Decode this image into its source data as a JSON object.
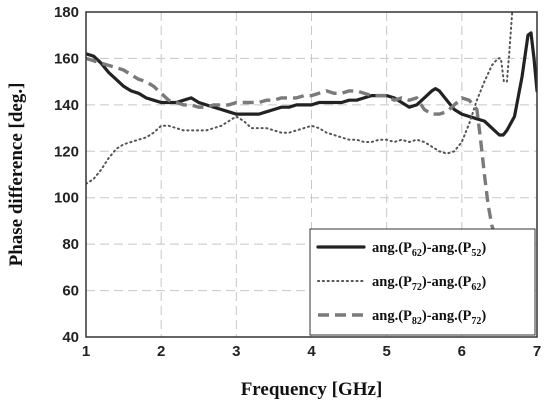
{
  "chart_data": {
    "type": "line",
    "xlabel": "Frequency [GHz]",
    "ylabel": "Phase difference [deg.]",
    "xlim": [
      1,
      7
    ],
    "ylim": [
      40,
      180
    ],
    "xticks": [
      1,
      2,
      3,
      4,
      5,
      6,
      7
    ],
    "yticks": [
      40,
      60,
      80,
      100,
      120,
      140,
      160,
      180
    ],
    "grid": true,
    "legend_position": "bottom-right",
    "series": [
      {
        "name": "ang.(P62)-ang.(P52)",
        "legend": {
          "a": "ang.(P",
          "sa": "62",
          "b": ")-ang.(P",
          "sb": "52",
          "c": ")"
        },
        "style": "solid",
        "color": "#222222",
        "points": [
          [
            1.0,
            162
          ],
          [
            1.1,
            161
          ],
          [
            1.2,
            158
          ],
          [
            1.3,
            154
          ],
          [
            1.4,
            151
          ],
          [
            1.5,
            148
          ],
          [
            1.6,
            146
          ],
          [
            1.7,
            145
          ],
          [
            1.8,
            143
          ],
          [
            1.9,
            142
          ],
          [
            2.0,
            141
          ],
          [
            2.1,
            141
          ],
          [
            2.2,
            141
          ],
          [
            2.3,
            142
          ],
          [
            2.4,
            143
          ],
          [
            2.5,
            141
          ],
          [
            2.6,
            140
          ],
          [
            2.7,
            139
          ],
          [
            2.8,
            138
          ],
          [
            2.9,
            137
          ],
          [
            3.0,
            136
          ],
          [
            3.1,
            136
          ],
          [
            3.2,
            136
          ],
          [
            3.3,
            136
          ],
          [
            3.4,
            137
          ],
          [
            3.5,
            138
          ],
          [
            3.6,
            139
          ],
          [
            3.7,
            139
          ],
          [
            3.8,
            140
          ],
          [
            3.9,
            140
          ],
          [
            4.0,
            140
          ],
          [
            4.1,
            141
          ],
          [
            4.2,
            141
          ],
          [
            4.3,
            141
          ],
          [
            4.4,
            141
          ],
          [
            4.5,
            142
          ],
          [
            4.6,
            142
          ],
          [
            4.7,
            143
          ],
          [
            4.8,
            144
          ],
          [
            4.9,
            144
          ],
          [
            5.0,
            144
          ],
          [
            5.1,
            143
          ],
          [
            5.2,
            141
          ],
          [
            5.3,
            139
          ],
          [
            5.4,
            140
          ],
          [
            5.5,
            143
          ],
          [
            5.6,
            146
          ],
          [
            5.65,
            147
          ],
          [
            5.7,
            146
          ],
          [
            5.8,
            142
          ],
          [
            5.9,
            138
          ],
          [
            6.0,
            136
          ],
          [
            6.1,
            135
          ],
          [
            6.2,
            134
          ],
          [
            6.3,
            133
          ],
          [
            6.4,
            130
          ],
          [
            6.5,
            127
          ],
          [
            6.55,
            127
          ],
          [
            6.6,
            129
          ],
          [
            6.7,
            135
          ],
          [
            6.8,
            152
          ],
          [
            6.88,
            170
          ],
          [
            6.92,
            171
          ],
          [
            6.96,
            160
          ],
          [
            7.0,
            146
          ]
        ]
      },
      {
        "name": "ang.(P72)-ang.(P62)",
        "legend": {
          "a": "ang.(P",
          "sa": "72",
          "b": ")-ang.(P",
          "sb": "62",
          "c": ")"
        },
        "style": "dotted",
        "color": "#555555",
        "points": [
          [
            1.0,
            106
          ],
          [
            1.1,
            108
          ],
          [
            1.2,
            112
          ],
          [
            1.3,
            117
          ],
          [
            1.4,
            121
          ],
          [
            1.5,
            123
          ],
          [
            1.6,
            124
          ],
          [
            1.7,
            125
          ],
          [
            1.8,
            126
          ],
          [
            1.9,
            128
          ],
          [
            2.0,
            131
          ],
          [
            2.1,
            131
          ],
          [
            2.2,
            130
          ],
          [
            2.3,
            129
          ],
          [
            2.4,
            129
          ],
          [
            2.5,
            129
          ],
          [
            2.6,
            129
          ],
          [
            2.7,
            130
          ],
          [
            2.8,
            131
          ],
          [
            2.9,
            133
          ],
          [
            3.0,
            135
          ],
          [
            3.1,
            133
          ],
          [
            3.2,
            130
          ],
          [
            3.3,
            130
          ],
          [
            3.4,
            130
          ],
          [
            3.5,
            129
          ],
          [
            3.6,
            128
          ],
          [
            3.7,
            128
          ],
          [
            3.8,
            129
          ],
          [
            3.9,
            130
          ],
          [
            4.0,
            131
          ],
          [
            4.1,
            130
          ],
          [
            4.2,
            128
          ],
          [
            4.3,
            127
          ],
          [
            4.4,
            126
          ],
          [
            4.5,
            125
          ],
          [
            4.6,
            125
          ],
          [
            4.7,
            124
          ],
          [
            4.8,
            124
          ],
          [
            4.9,
            125
          ],
          [
            5.0,
            125
          ],
          [
            5.1,
            124
          ],
          [
            5.2,
            125
          ],
          [
            5.3,
            124
          ],
          [
            5.4,
            125
          ],
          [
            5.5,
            124
          ],
          [
            5.6,
            122
          ],
          [
            5.7,
            120
          ],
          [
            5.8,
            119
          ],
          [
            5.9,
            120
          ],
          [
            6.0,
            124
          ],
          [
            6.1,
            132
          ],
          [
            6.2,
            142
          ],
          [
            6.3,
            150
          ],
          [
            6.4,
            157
          ],
          [
            6.48,
            160
          ],
          [
            6.52,
            160
          ],
          [
            6.56,
            150
          ],
          [
            6.6,
            150
          ],
          [
            6.63,
            162
          ],
          [
            6.67,
            180
          ]
        ]
      },
      {
        "name": "ang.(P82)-ang.(P72)",
        "legend": {
          "a": "ang.(P",
          "sa": "82",
          "b": ")-ang.(P",
          "sb": "72",
          "c": ")"
        },
        "style": "dashed",
        "color": "#7a7a7a",
        "points": [
          [
            1.0,
            160
          ],
          [
            1.1,
            159
          ],
          [
            1.2,
            158
          ],
          [
            1.3,
            157
          ],
          [
            1.4,
            156
          ],
          [
            1.5,
            155
          ],
          [
            1.6,
            153
          ],
          [
            1.7,
            151
          ],
          [
            1.8,
            150
          ],
          [
            1.9,
            148
          ],
          [
            2.0,
            145
          ],
          [
            2.1,
            142
          ],
          [
            2.2,
            141
          ],
          [
            2.3,
            140
          ],
          [
            2.4,
            140
          ],
          [
            2.5,
            139
          ],
          [
            2.6,
            139
          ],
          [
            2.7,
            140
          ],
          [
            2.8,
            140
          ],
          [
            2.9,
            140
          ],
          [
            3.0,
            141
          ],
          [
            3.1,
            141
          ],
          [
            3.2,
            141
          ],
          [
            3.3,
            141
          ],
          [
            3.4,
            142
          ],
          [
            3.5,
            142
          ],
          [
            3.6,
            143
          ],
          [
            3.7,
            143
          ],
          [
            3.8,
            143
          ],
          [
            3.9,
            144
          ],
          [
            4.0,
            144
          ],
          [
            4.1,
            145
          ],
          [
            4.2,
            146
          ],
          [
            4.3,
            145
          ],
          [
            4.4,
            145
          ],
          [
            4.5,
            146
          ],
          [
            4.6,
            146
          ],
          [
            4.7,
            145
          ],
          [
            4.8,
            144
          ],
          [
            4.9,
            144
          ],
          [
            5.0,
            144
          ],
          [
            5.1,
            142
          ],
          [
            5.2,
            143
          ],
          [
            5.3,
            142
          ],
          [
            5.4,
            143
          ],
          [
            5.5,
            138
          ],
          [
            5.6,
            136
          ],
          [
            5.7,
            136
          ],
          [
            5.8,
            137
          ],
          [
            5.9,
            140
          ],
          [
            6.0,
            143
          ],
          [
            6.1,
            142
          ],
          [
            6.2,
            138
          ],
          [
            6.25,
            125
          ],
          [
            6.3,
            110
          ],
          [
            6.35,
            97
          ],
          [
            6.4,
            88
          ],
          [
            6.45,
            83
          ],
          [
            6.5,
            79
          ],
          [
            6.55,
            75
          ],
          [
            6.58,
            72
          ],
          [
            6.6,
            68
          ],
          [
            6.62,
            62
          ],
          [
            6.65,
            50
          ],
          [
            6.68,
            41
          ]
        ]
      }
    ]
  }
}
